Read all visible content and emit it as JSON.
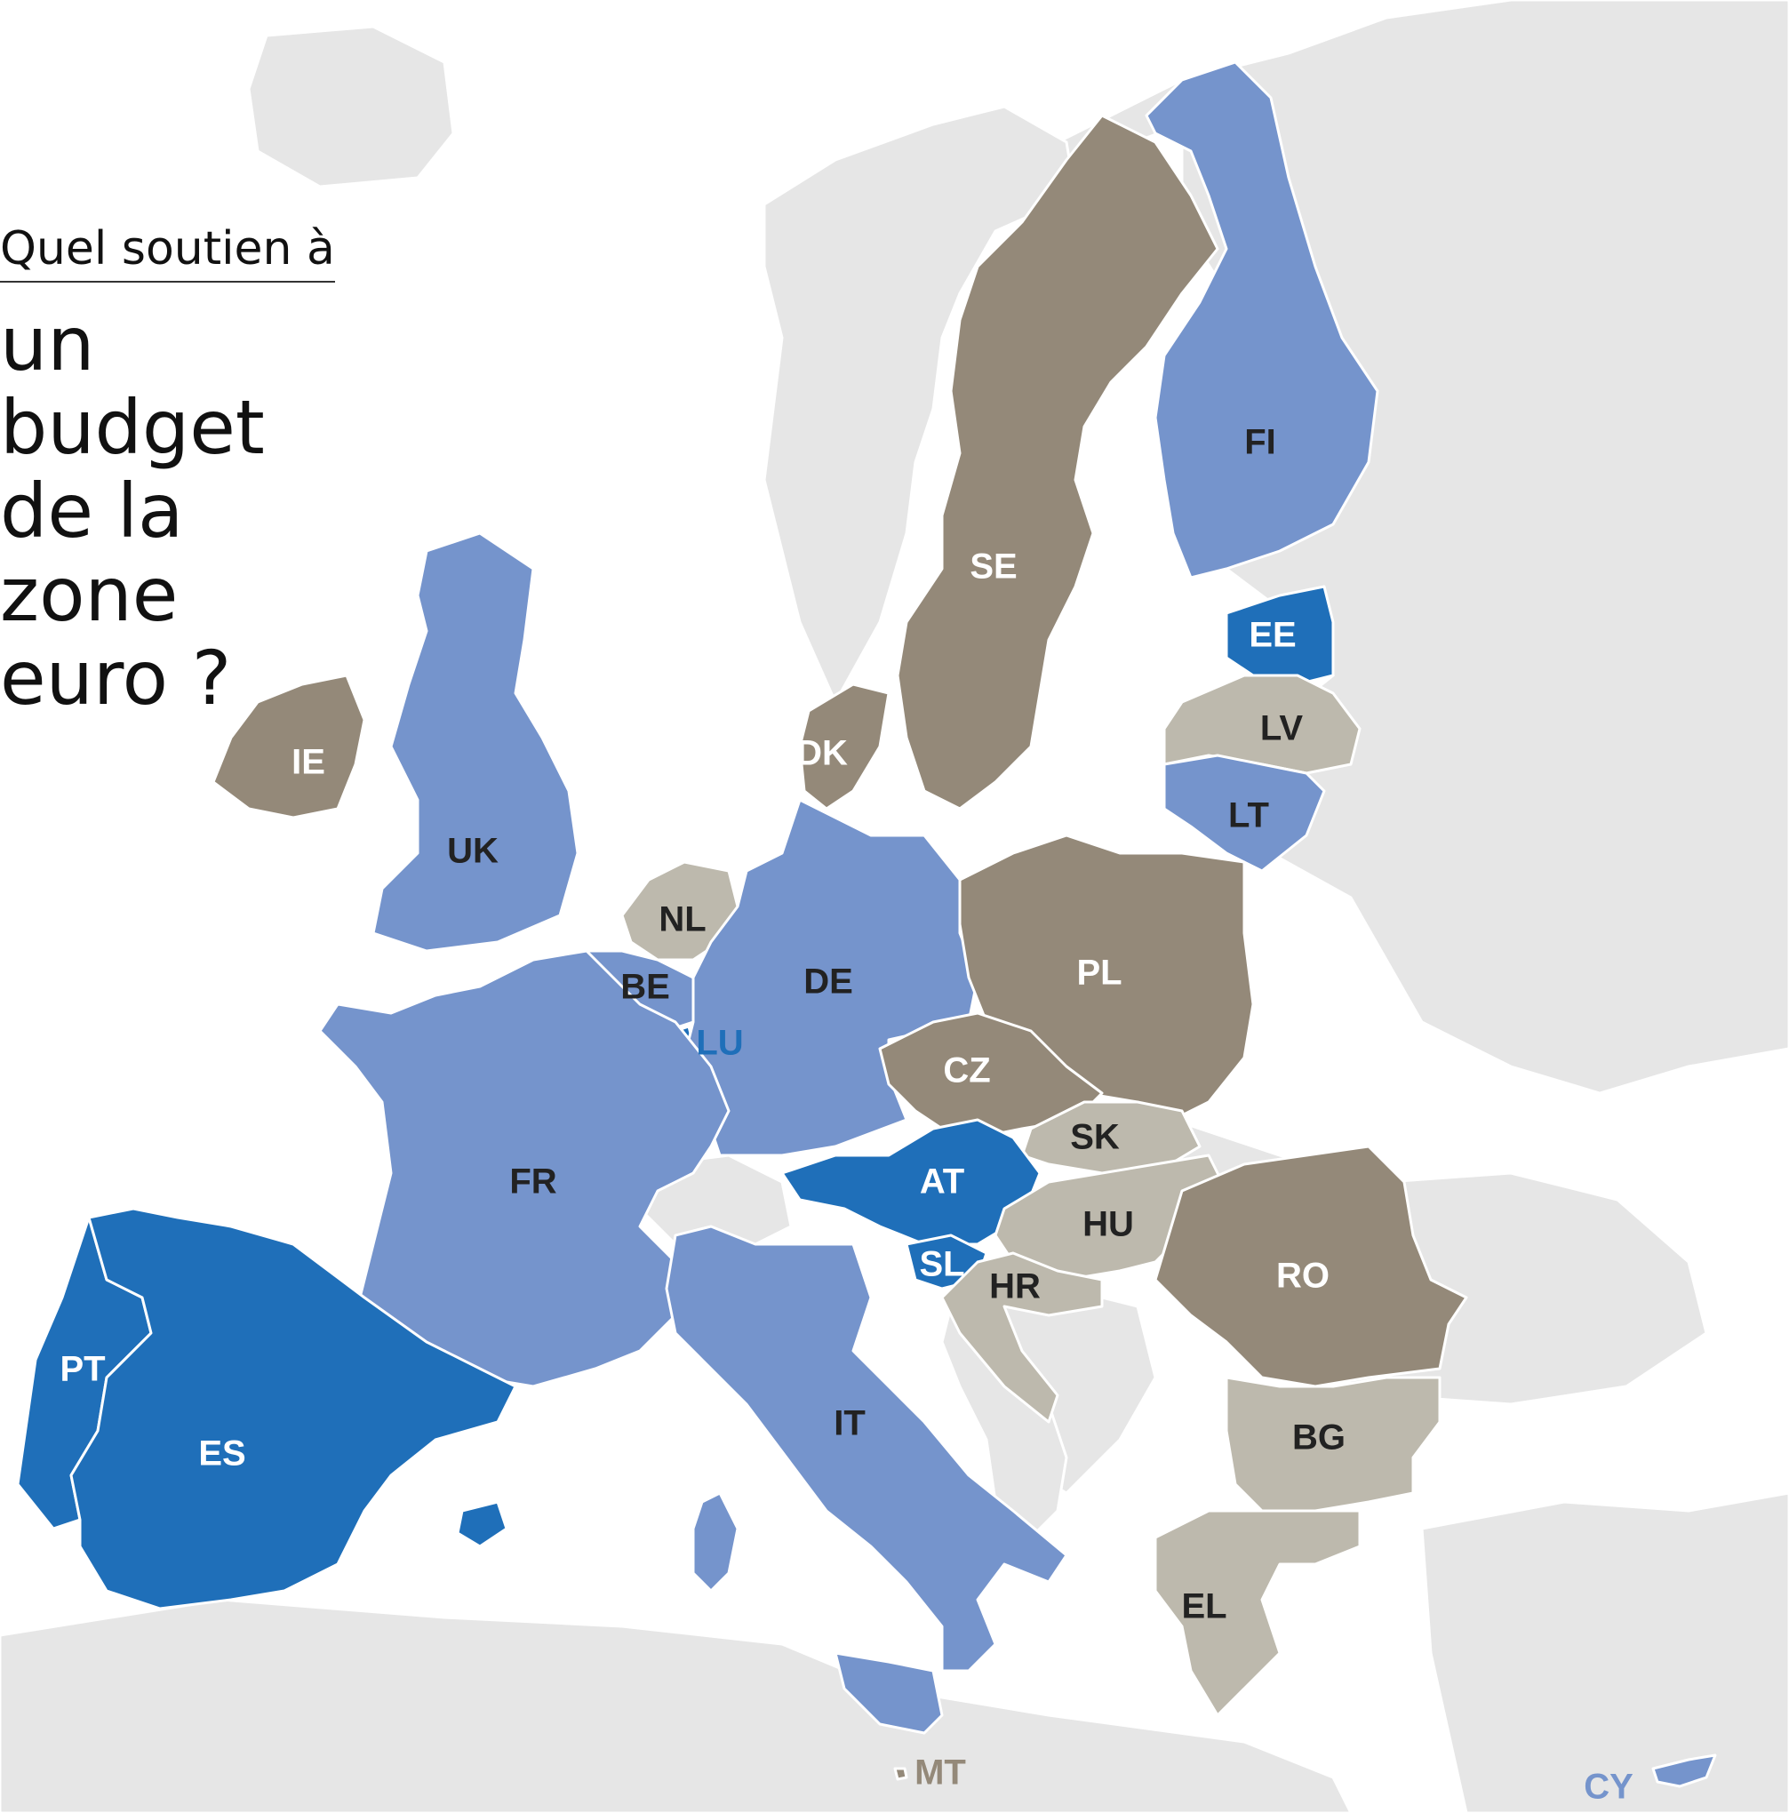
{
  "title": {
    "kicker": "Quel soutien à",
    "headline": "un budget\nde la zone\neuro ?"
  },
  "colors": {
    "background": "#ffffff",
    "non_eu_land": "#e6e6e6",
    "strong_blue": "#1f6fb9",
    "light_blue": "#7594cc",
    "dark_taupe": "#948979",
    "light_taupe": "#bdb9ad",
    "label_light": "#ffffff",
    "label_dark": "#222222"
  },
  "countries": [
    {
      "code": "FI",
      "color": "light_blue"
    },
    {
      "code": "SE",
      "color": "dark_taupe"
    },
    {
      "code": "EE",
      "color": "strong_blue"
    },
    {
      "code": "LV",
      "color": "light_taupe"
    },
    {
      "code": "LT",
      "color": "light_blue"
    },
    {
      "code": "DK",
      "color": "dark_taupe"
    },
    {
      "code": "IE",
      "color": "dark_taupe"
    },
    {
      "code": "UK",
      "color": "light_blue"
    },
    {
      "code": "NL",
      "color": "light_taupe"
    },
    {
      "code": "BE",
      "color": "light_blue"
    },
    {
      "code": "LU",
      "color": "strong_blue"
    },
    {
      "code": "DE",
      "color": "light_blue"
    },
    {
      "code": "PL",
      "color": "dark_taupe"
    },
    {
      "code": "CZ",
      "color": "dark_taupe"
    },
    {
      "code": "SK",
      "color": "light_taupe"
    },
    {
      "code": "AT",
      "color": "strong_blue"
    },
    {
      "code": "HU",
      "color": "light_taupe"
    },
    {
      "code": "FR",
      "color": "light_blue"
    },
    {
      "code": "RO",
      "color": "dark_taupe"
    },
    {
      "code": "SL",
      "color": "strong_blue"
    },
    {
      "code": "HR",
      "color": "light_taupe"
    },
    {
      "code": "PT",
      "color": "strong_blue"
    },
    {
      "code": "ES",
      "color": "strong_blue"
    },
    {
      "code": "IT",
      "color": "light_blue"
    },
    {
      "code": "BG",
      "color": "light_taupe"
    },
    {
      "code": "EL",
      "color": "light_taupe"
    },
    {
      "code": "MT",
      "color": "dark_taupe"
    },
    {
      "code": "CY",
      "color": "light_blue"
    }
  ]
}
